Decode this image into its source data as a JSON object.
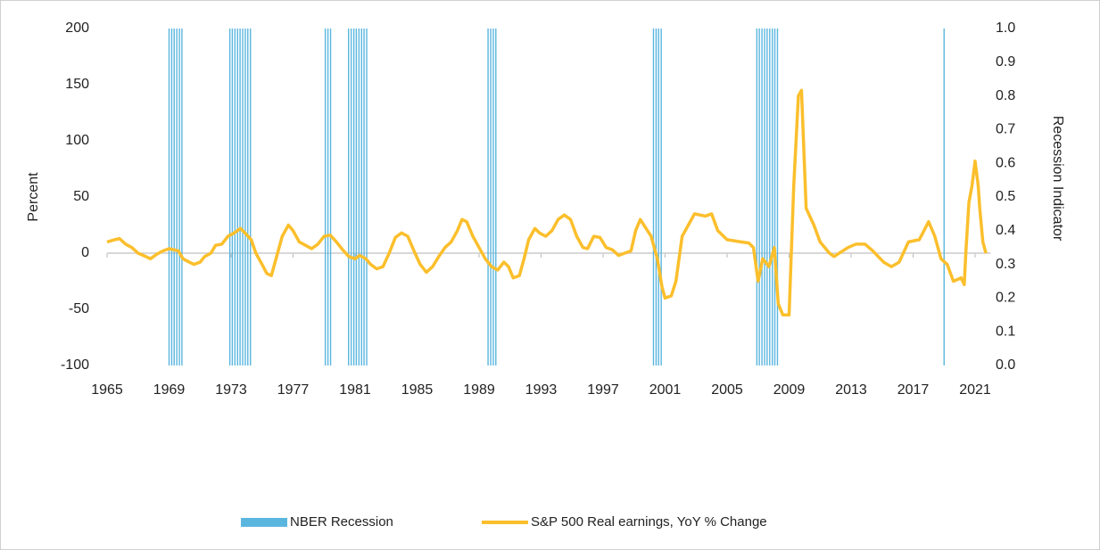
{
  "chart_data": {
    "type": "bar-line",
    "ylabel": "Percent",
    "y2label": "Recession Indicator",
    "xlim": [
      1965,
      2022
    ],
    "xticks": [
      1965,
      1969,
      1973,
      1977,
      1981,
      1985,
      1989,
      1993,
      1997,
      2001,
      2005,
      2009,
      2013,
      2017,
      2021
    ],
    "ylim": [
      -100,
      200
    ],
    "yticks": [
      -100,
      -50,
      0,
      50,
      100,
      150,
      200
    ],
    "y2lim": [
      0,
      1
    ],
    "y2ticks": [
      {
        "value": 0,
        "label": "0.0"
      },
      0.1,
      0.2,
      0.3,
      0.4,
      0.5,
      0.6,
      0.7,
      0.8,
      0.9,
      {
        "value": 1,
        "label": "1.0"
      }
    ],
    "legend": "bottom",
    "series": [
      {
        "name": "NBER Recession",
        "type": "bar",
        "axis": "y2",
        "color": "#5bb6df",
        "x": [
          1969.0,
          1969.17,
          1969.33,
          1969.5,
          1969.67,
          1969.83,
          1972.92,
          1973.08,
          1973.25,
          1973.42,
          1973.58,
          1973.75,
          1973.92,
          1974.08,
          1974.25,
          1979.08,
          1979.25,
          1979.42,
          1980.58,
          1980.75,
          1980.92,
          1981.08,
          1981.25,
          1981.42,
          1981.58,
          1981.75,
          1989.58,
          1989.75,
          1989.92,
          1990.08,
          2000.25,
          2000.42,
          2000.58,
          2000.75,
          2006.92,
          2007.08,
          2007.25,
          2007.42,
          2007.58,
          2007.75,
          2007.92,
          2008.08,
          2008.25,
          2019.0
        ],
        "values": [
          1,
          1,
          1,
          1,
          1,
          1,
          1,
          1,
          1,
          1,
          1,
          1,
          1,
          1,
          1,
          1,
          1,
          1,
          1,
          1,
          1,
          1,
          1,
          1,
          1,
          1,
          1,
          1,
          1,
          1,
          1,
          1,
          1,
          1,
          1,
          1,
          1,
          1,
          1,
          1,
          1,
          1,
          1,
          1
        ]
      },
      {
        "name": "S&P 500 Real earnings, YoY % Change",
        "type": "line",
        "color": "#fbbf2c",
        "x": [
          1965.0,
          1965.5,
          1965.8,
          1966.2,
          1966.6,
          1967.0,
          1967.5,
          1967.8,
          1968.2,
          1968.6,
          1969.0,
          1969.3,
          1969.6,
          1969.9,
          1970.3,
          1970.6,
          1971.0,
          1971.3,
          1971.7,
          1972.0,
          1972.4,
          1972.8,
          1973.2,
          1973.6,
          1973.9,
          1974.3,
          1974.6,
          1975.0,
          1975.3,
          1975.6,
          1975.9,
          1976.3,
          1976.7,
          1977.0,
          1977.4,
          1977.8,
          1978.2,
          1978.6,
          1979.0,
          1979.4,
          1979.8,
          1980.2,
          1980.6,
          1981.0,
          1981.3,
          1981.7,
          1982.0,
          1982.4,
          1982.8,
          1983.2,
          1983.6,
          1984.0,
          1984.4,
          1984.8,
          1985.2,
          1985.6,
          1986.0,
          1986.4,
          1986.8,
          1987.2,
          1987.6,
          1987.9,
          1988.2,
          1988.6,
          1989.0,
          1989.4,
          1989.8,
          1990.2,
          1990.6,
          1990.9,
          1991.2,
          1991.6,
          1991.9,
          1992.2,
          1992.6,
          1992.9,
          1993.3,
          1993.7,
          1994.1,
          1994.5,
          1994.9,
          1995.3,
          1995.7,
          1996.0,
          1996.4,
          1996.8,
          1997.2,
          1997.6,
          1998.0,
          1998.4,
          1998.8,
          1999.1,
          1999.4,
          2000.1,
          2000.5,
          2000.8,
          2001.0,
          2001.4,
          2001.7,
          2002.1,
          2002.5,
          2002.9,
          2003.6,
          2004.0,
          2004.4,
          2005.0,
          2005.9,
          2006.4,
          2006.7,
          2007.0,
          2007.3,
          2007.7,
          2008.05,
          2008.3,
          2008.6,
          2009.0,
          2009.3,
          2009.6,
          2009.8,
          2010.1,
          2010.6,
          2011.0,
          2011.6,
          2011.9,
          2012.8,
          2013.3,
          2013.9,
          2014.4,
          2015.1,
          2015.6,
          2016.1,
          2016.7,
          2017.4,
          2018.0,
          2018.4,
          2018.8,
          2019.2,
          2019.6,
          2020.1,
          2020.3,
          2020.4,
          2020.6,
          2020.8,
          2021.0,
          2021.2,
          2021.3,
          2021.5,
          2021.7
        ],
        "values": [
          10,
          12,
          13,
          8,
          5,
          0,
          -3,
          -5,
          -1,
          2,
          4,
          3,
          2,
          -5,
          -8,
          -10,
          -8,
          -3,
          0,
          7,
          8,
          15,
          18,
          22,
          18,
          12,
          0,
          -10,
          -18,
          -20,
          -5,
          15,
          25,
          20,
          10,
          7,
          4,
          8,
          15,
          16,
          10,
          3,
          -3,
          -5,
          -2,
          -5,
          -10,
          -14,
          -12,
          0,
          14,
          18,
          15,
          2,
          -10,
          -17,
          -12,
          -3,
          5,
          10,
          20,
          30,
          28,
          15,
          5,
          -5,
          -12,
          -15,
          -8,
          -12,
          -22,
          -20,
          -5,
          12,
          22,
          18,
          15,
          20,
          30,
          34,
          30,
          15,
          5,
          4,
          15,
          14,
          5,
          3,
          -2,
          0,
          2,
          20,
          30,
          15,
          -5,
          -30,
          -40,
          -38,
          -25,
          15,
          25,
          35,
          33,
          35,
          20,
          12,
          10,
          9,
          5,
          -25,
          -5,
          -12,
          5,
          -45,
          -55,
          -55,
          60,
          140,
          145,
          40,
          25,
          10,
          0,
          -3,
          5,
          8,
          8,
          2,
          -8,
          -12,
          -8,
          10,
          12,
          28,
          15,
          -5,
          -10,
          -25,
          -22,
          -28,
          0,
          45,
          60,
          82,
          60,
          40,
          10,
          0
        ]
      }
    ]
  }
}
